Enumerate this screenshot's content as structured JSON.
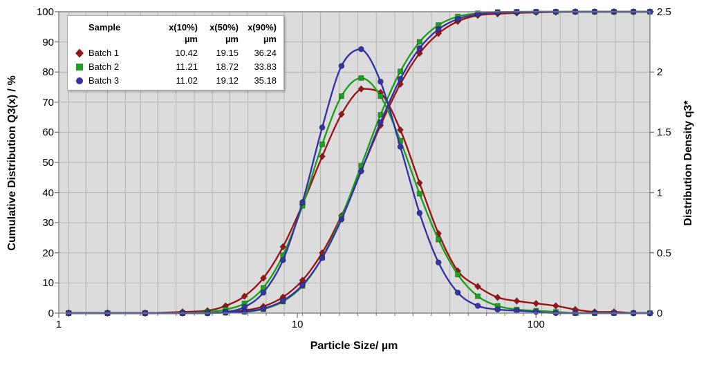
{
  "axes": {
    "y_left_title": "Cumulative Distribution Q3(x) / %",
    "y_right_title": "Distribution Density q3*",
    "x_title": "Particle Size/ µm",
    "y_left_tick_labels": [
      "0",
      "10",
      "20",
      "30",
      "40",
      "50",
      "60",
      "70",
      "80",
      "90",
      "100"
    ],
    "y_right_tick_labels": [
      "0",
      "0.5",
      "1",
      "1.5",
      "2",
      "2.5"
    ],
    "x_tick_labels": [
      "1",
      "10",
      "100"
    ],
    "x_tick_values": [
      1,
      10,
      100
    ]
  },
  "legend": {
    "header": [
      "Sample",
      "x(10%)",
      "x(50%)",
      "x(90%)"
    ],
    "units": [
      "µm",
      "µm",
      "µm"
    ],
    "rows": [
      {
        "marker": "diamond-marker-icon",
        "label": "Batch 1",
        "x10": "10.42",
        "x50": "19.15",
        "x90": "36.24"
      },
      {
        "marker": "square-marker-icon",
        "label": "Batch 2",
        "x10": "11.21",
        "x50": "18.72",
        "x90": "33.83"
      },
      {
        "marker": "circle-marker-icon",
        "label": "Batch 3",
        "x10": "11.02",
        "x50": "19.12",
        "x90": "35.18"
      }
    ]
  },
  "colors": {
    "batch1": "#9A1616",
    "batch2": "#1DA01D",
    "batch3": "#3434A6",
    "plot_bg": "#dcdcdc",
    "grid": "#b2b2b2",
    "axis_line": "#7f7f7f",
    "outer_bg": "#ffffff",
    "text": "#000000"
  },
  "chart_data": {
    "type": "line",
    "x_axis": {
      "label": "Particle Size/ µm",
      "scale": "log",
      "min": 1,
      "max": 300
    },
    "y_left": {
      "label": "Cumulative Distribution Q3(x) / %",
      "min": 0,
      "max": 100,
      "step": 10
    },
    "y_right": {
      "label": "Distribution Density q3*",
      "min": 0,
      "max": 2.5,
      "step": 0.5
    },
    "grid": true,
    "legend_position": "top-left",
    "x_gridlines_um": [
      1.1,
      1.3,
      1.6,
      1.9,
      2.2,
      2.6,
      3.1,
      3.7,
      4.4,
      5.2,
      6.2,
      7.4,
      8.8,
      10.5,
      12.5,
      15,
      17.9,
      21.4,
      25.6,
      30.5,
      36.4,
      43.5,
      52,
      62,
      74,
      88.5,
      105.7,
      126.2,
      150.7,
      180,
      215,
      256.7
    ],
    "x_um": [
      1.1,
      1.6,
      2.3,
      3.3,
      4.2,
      5,
      6,
      7.2,
      8.7,
      10.5,
      12.7,
      15.3,
      18.5,
      22.3,
      27,
      32.5,
      39,
      47,
      57,
      69,
      83,
      100,
      121,
      146,
      176,
      212,
      256,
      300
    ],
    "series": [
      {
        "name": "Batch 1",
        "marker": "diamond",
        "color": "#9A1616",
        "cumulative_Q3_pct": [
          0,
          0,
          0,
          0,
          0.1,
          0.3,
          0.9,
          2.2,
          5.3,
          10.9,
          20,
          32.3,
          47.2,
          62.3,
          76,
          86.2,
          92.8,
          96.8,
          98.8,
          99.3,
          99.6,
          99.8,
          99.9,
          100,
          100,
          100,
          100,
          100
        ],
        "density_q3": [
          0,
          0,
          0,
          0.01,
          0.02,
          0.06,
          0.14,
          0.29,
          0.55,
          0.9,
          1.3,
          1.65,
          1.86,
          1.83,
          1.52,
          1.08,
          0.66,
          0.35,
          0.22,
          0.13,
          0.1,
          0.08,
          0.06,
          0.03,
          0.01,
          0.01,
          0,
          0
        ]
      },
      {
        "name": "Batch 2",
        "marker": "square",
        "color": "#1DA01D",
        "cumulative_Q3_pct": [
          0,
          0,
          0,
          0,
          0,
          0.1,
          0.4,
          1.3,
          3.8,
          9,
          18.4,
          31.9,
          48.9,
          65.8,
          80.2,
          90,
          95.6,
          98.4,
          99.5,
          99.9,
          100,
          100,
          100,
          100,
          100,
          100,
          100,
          100
        ],
        "density_q3": [
          0,
          0,
          0,
          0,
          0.01,
          0.03,
          0.08,
          0.21,
          0.48,
          0.89,
          1.4,
          1.8,
          1.95,
          1.8,
          1.43,
          0.99,
          0.61,
          0.32,
          0.14,
          0.06,
          0.03,
          0.02,
          0.01,
          0,
          0,
          0,
          0,
          0
        ]
      },
      {
        "name": "Batch 3",
        "marker": "circle",
        "color": "#3434A6",
        "cumulative_Q3_pct": [
          0,
          0,
          0,
          0,
          0,
          0.2,
          0.5,
          1.5,
          4.1,
          9.3,
          18.3,
          31.1,
          47.1,
          63.3,
          77.7,
          87.9,
          94.2,
          97.6,
          99.2,
          99.8,
          99.9,
          100,
          100,
          100,
          100,
          100,
          100,
          100
        ],
        "density_q3": [
          0,
          0,
          0,
          0,
          0,
          0.01,
          0.05,
          0.17,
          0.44,
          0.92,
          1.54,
          2.05,
          2.19,
          1.92,
          1.38,
          0.83,
          0.42,
          0.17,
          0.06,
          0.03,
          0.02,
          0.01,
          0,
          0,
          0,
          0,
          0,
          0
        ]
      }
    ],
    "table": {
      "columns": [
        "Sample",
        "x(10%) µm",
        "x(50%) µm",
        "x(90%) µm"
      ],
      "rows": [
        [
          "Batch 1",
          10.42,
          19.15,
          36.24
        ],
        [
          "Batch 2",
          11.21,
          18.72,
          33.83
        ],
        [
          "Batch 3",
          11.02,
          19.12,
          35.18
        ]
      ]
    }
  }
}
